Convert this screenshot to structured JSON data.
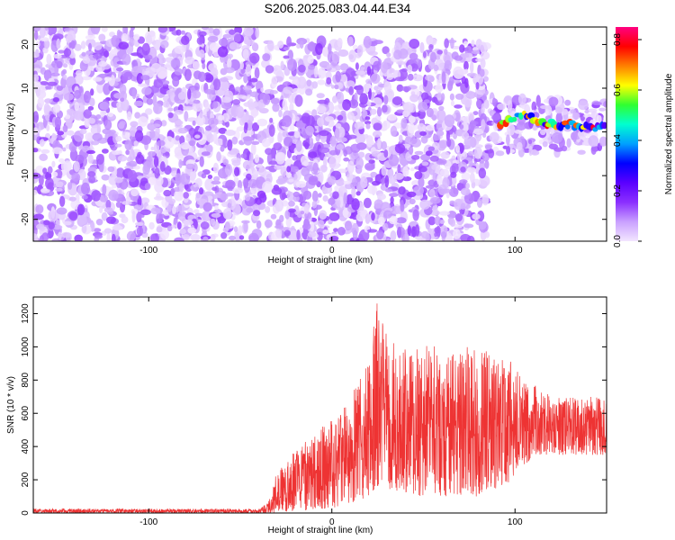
{
  "title": "S206.2025.083.04.44.E34",
  "chart_data": [
    {
      "type": "heatmap",
      "xlabel": "Height of straight line (km)",
      "ylabel": "Frequency (Hz)",
      "xlim": [
        -163,
        150
      ],
      "ylim": [
        -25,
        24
      ],
      "xticks": [
        -100,
        0,
        100
      ],
      "yticks": [
        -20,
        -10,
        0,
        10,
        20
      ],
      "colorbar": {
        "label": "Normalized spectral amplitude",
        "range": [
          0.0,
          0.85
        ],
        "ticks": [
          0.0,
          0.2,
          0.4,
          0.6,
          0.8
        ],
        "colors": [
          "#f3e6ff",
          "#c9a0ff",
          "#8b2fff",
          "#5a00ff",
          "#0000ff",
          "#00a0ff",
          "#00ffd0",
          "#30ff30",
          "#ffff00",
          "#ff8000",
          "#ff0000",
          "#ff0080"
        ]
      },
      "regions": [
        {
          "x": [
            -163,
            -40
          ],
          "y": [
            -25,
            24
          ],
          "amplitude_range": [
            0.0,
            0.15
          ]
        },
        {
          "x": [
            -40,
            85
          ],
          "y": [
            -25,
            21
          ],
          "amplitude_range": [
            0.0,
            0.15
          ]
        },
        {
          "x": [
            85,
            150
          ],
          "y": [
            -5,
            8
          ],
          "amplitude_range": [
            0.0,
            0.15
          ]
        }
      ],
      "ridge": {
        "x": [
          92,
          98,
          105,
          110,
          115,
          120,
          125,
          130,
          135,
          140,
          145,
          150
        ],
        "y": [
          2,
          3,
          4,
          3,
          2,
          2,
          1,
          2,
          1,
          1,
          1,
          1
        ],
        "amplitude_range": [
          0.2,
          0.8
        ]
      }
    },
    {
      "type": "line",
      "color": "#ee3333",
      "xlabel": "Height of straight line (km)",
      "ylabel": "SNR (10 * v/v)",
      "xlim": [
        -163,
        150
      ],
      "ylim": [
        0,
        1300
      ],
      "xticks": [
        -100,
        0,
        100
      ],
      "yticks": [
        0,
        200,
        400,
        600,
        800,
        1000,
        1200
      ],
      "envelope": {
        "x": [
          -163,
          -40,
          -35,
          -30,
          -20,
          -10,
          0,
          10,
          20,
          25,
          30,
          40,
          50,
          60,
          70,
          80,
          90,
          100,
          110,
          120,
          130,
          140,
          150
        ],
        "low": [
          0,
          0,
          0,
          0,
          10,
          20,
          30,
          50,
          100,
          150,
          150,
          100,
          100,
          100,
          100,
          100,
          150,
          200,
          350,
          350,
          350,
          350,
          350
        ],
        "high": [
          25,
          25,
          60,
          250,
          380,
          480,
          560,
          700,
          900,
          1300,
          1080,
          1000,
          1020,
          1000,
          1000,
          1000,
          950,
          900,
          780,
          700,
          700,
          700,
          700
        ]
      }
    }
  ]
}
